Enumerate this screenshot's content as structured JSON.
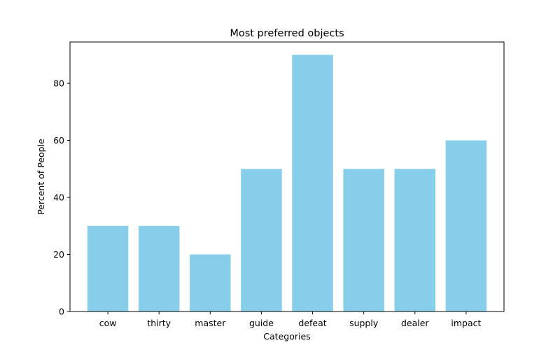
{
  "chart_data": {
    "type": "bar",
    "title": "Most preferred objects",
    "xlabel": "Categories",
    "ylabel": "Percent of People",
    "categories": [
      "cow",
      "thirty",
      "master",
      "guide",
      "defeat",
      "supply",
      "dealer",
      "impact"
    ],
    "values": [
      30,
      30,
      20,
      50,
      90,
      50,
      50,
      60
    ],
    "yticks": [
      0,
      20,
      40,
      60,
      80
    ],
    "ylim": [
      0,
      94.5
    ],
    "grid": false,
    "bar_color": "#87ceeb"
  }
}
